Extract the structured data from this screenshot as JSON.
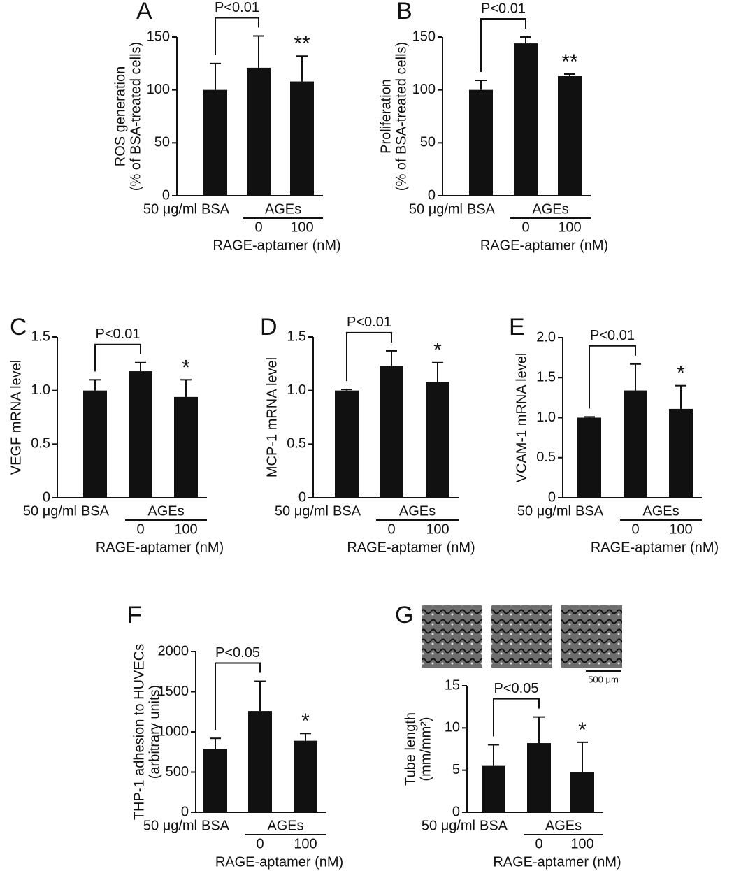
{
  "chart_data": [
    {
      "type": "bar",
      "title": "A",
      "ylabel": [
        "ROS generation",
        "(% of BSA-treated cells)"
      ],
      "categories": [
        "BSA",
        "0",
        "100"
      ],
      "group_label": "AGEs",
      "dose_label": "50 μg/ml",
      "xlabel": "RAGE-aptamer (nM)",
      "values": [
        100,
        121,
        108
      ],
      "errors": [
        25,
        30,
        24
      ],
      "color": "#111111",
      "ylim": [
        0,
        150
      ],
      "yticks": [
        0,
        50,
        100,
        150
      ],
      "significance": "P<0.01",
      "star": "**"
    },
    {
      "type": "bar",
      "title": "B",
      "ylabel": [
        "Proliferation",
        "(% of BSA-treated cells)"
      ],
      "categories": [
        "BSA",
        "0",
        "100"
      ],
      "group_label": "AGEs",
      "dose_label": "50 μg/ml",
      "xlabel": "RAGE-aptamer (nM)",
      "values": [
        100,
        144,
        113
      ],
      "errors": [
        9,
        6,
        2
      ],
      "color": "#111111",
      "ylim": [
        0,
        150
      ],
      "yticks": [
        0,
        50,
        100,
        150
      ],
      "significance": "P<0.01",
      "star": "**"
    },
    {
      "type": "bar",
      "title": "C",
      "ylabel": [
        "VEGF mRNA level"
      ],
      "categories": [
        "BSA",
        "0",
        "100"
      ],
      "group_label": "AGEs",
      "dose_label": "50 μg/ml",
      "xlabel": "RAGE-aptamer (nM)",
      "values": [
        1.0,
        1.18,
        0.94
      ],
      "errors": [
        0.1,
        0.08,
        0.16
      ],
      "color": "#111111",
      "ylim": [
        0,
        1.5
      ],
      "yticks": [
        0,
        0.5,
        {
          "value": 1,
          "label": "1.0"
        },
        1.5
      ],
      "significance": "P<0.01",
      "star": "*"
    },
    {
      "type": "bar",
      "title": "D",
      "ylabel": [
        "MCP-1 mRNA level"
      ],
      "categories": [
        "BSA",
        "0",
        "100"
      ],
      "group_label": "AGEs",
      "dose_label": "50 μg/ml",
      "xlabel": "RAGE-aptamer (nM)",
      "values": [
        1.0,
        1.23,
        1.08
      ],
      "errors": [
        0.01,
        0.14,
        0.18
      ],
      "color": "#111111",
      "ylim": [
        0,
        1.5
      ],
      "yticks": [
        0,
        0.5,
        {
          "value": 1,
          "label": "1.0"
        },
        1.5
      ],
      "significance": "P<0.01",
      "star": "*"
    },
    {
      "type": "bar",
      "title": "E",
      "ylabel": [
        "VCAM-1 mRNA level"
      ],
      "categories": [
        "BSA",
        "0",
        "100"
      ],
      "group_label": "AGEs",
      "dose_label": "50 μg/ml",
      "xlabel": "RAGE-aptamer (nM)",
      "values": [
        1.0,
        1.34,
        1.11
      ],
      "errors": [
        0.01,
        0.33,
        0.29
      ],
      "color": "#111111",
      "ylim": [
        0,
        2
      ],
      "yticks": [
        0,
        0.5,
        {
          "value": 1,
          "label": "1.0"
        },
        1.5,
        {
          "value": 2,
          "label": "2.0"
        }
      ],
      "significance": "P<0.01",
      "star": "*"
    },
    {
      "type": "bar",
      "title": "F",
      "ylabel": [
        "THP-1 adhesion to HUVECs",
        "(arbitrary units)"
      ],
      "categories": [
        "BSA",
        "0",
        "100"
      ],
      "group_label": "AGEs",
      "dose_label": "50 μg/ml",
      "xlabel": "RAGE-aptamer (nM)",
      "values": [
        790,
        1260,
        890
      ],
      "errors": [
        130,
        370,
        90
      ],
      "color": "#111111",
      "ylim": [
        0,
        2000
      ],
      "yticks": [
        0,
        500,
        1000,
        1500,
        2000
      ],
      "significance": "P<0.05",
      "star": "*"
    },
    {
      "type": "bar",
      "title": "G",
      "ylabel": [
        "Tube length",
        "(mm/mm²)"
      ],
      "categories": [
        "BSA",
        "0",
        "100"
      ],
      "group_label": "AGEs",
      "dose_label": "50 μg/ml",
      "xlabel": "RAGE-aptamer (nM)",
      "values": [
        5.5,
        8.2,
        4.8
      ],
      "errors": [
        2.5,
        3.1,
        3.5
      ],
      "color": "#111111",
      "ylim": [
        0,
        15
      ],
      "yticks": [
        0,
        5,
        10,
        15
      ],
      "significance": "P<0.05",
      "star": "*",
      "scale_bar": "500 μm"
    }
  ]
}
